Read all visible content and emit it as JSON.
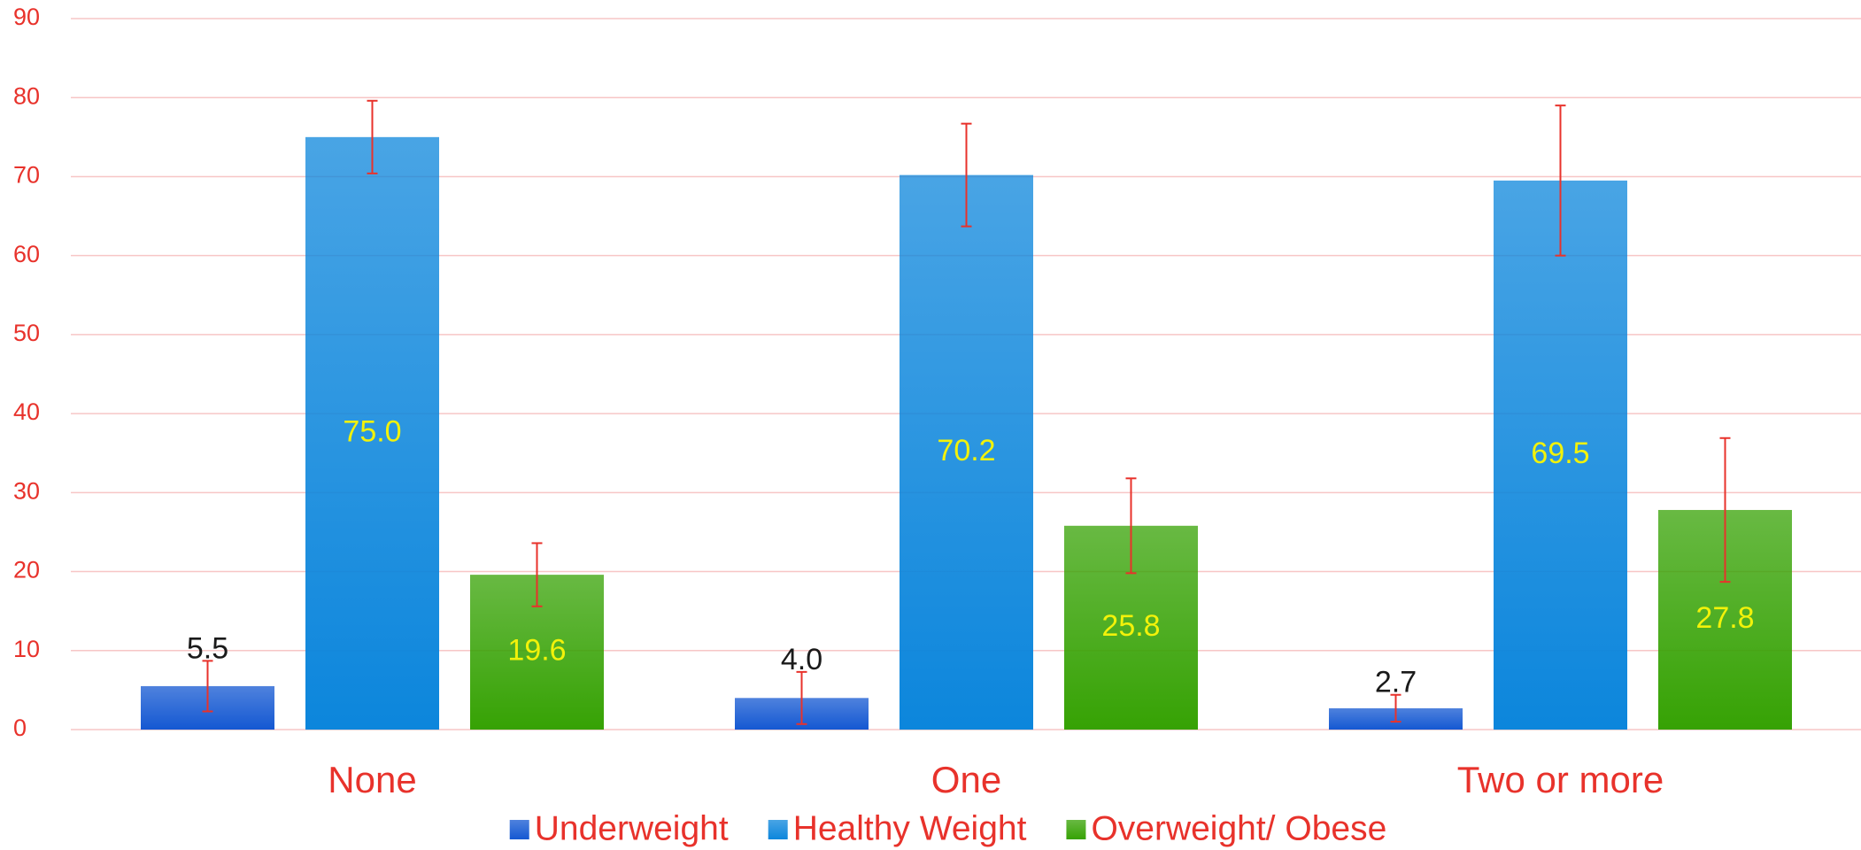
{
  "chart_data": {
    "type": "bar",
    "categories": [
      "None",
      "One",
      "Two or more"
    ],
    "series": [
      {
        "name": "Underweight",
        "color": "#1458d2",
        "label_color": "#1a1a1a",
        "label_position": "above",
        "values": [
          5.5,
          4.0,
          2.7
        ],
        "value_labels": [
          "5.5",
          "4.0",
          "2.7"
        ],
        "errors": [
          3.2,
          3.3,
          1.7
        ]
      },
      {
        "name": "Healthy Weight",
        "color": "#0c86dc",
        "label_color": "#f2f20a",
        "label_position": "center",
        "values": [
          75.0,
          70.2,
          69.5
        ],
        "value_labels": [
          "75.0",
          "70.2",
          "69.5"
        ],
        "errors": [
          4.6,
          6.5,
          9.5
        ]
      },
      {
        "name": "Overweight/ Obese",
        "color": "#36a204",
        "label_color": "#f2f20a",
        "label_position": "center",
        "values": [
          19.6,
          25.8,
          27.8
        ],
        "value_labels": [
          "19.6",
          "25.8",
          "27.8"
        ],
        "errors": [
          4.0,
          6.0,
          9.1
        ]
      }
    ],
    "error_color": "#e8322b",
    "ylim": [
      0,
      90
    ],
    "yticks": [
      0,
      10,
      20,
      30,
      40,
      50,
      60,
      70,
      80,
      90
    ],
    "grid": true,
    "grid_color": "#f7c6c6",
    "legend": "bottom"
  }
}
